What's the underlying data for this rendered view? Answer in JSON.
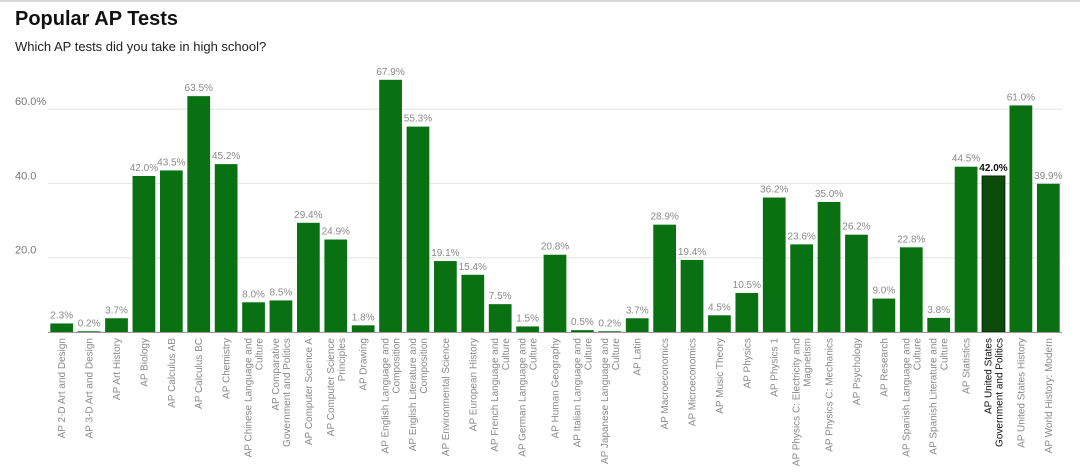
{
  "chart_data": {
    "type": "bar",
    "title": "Popular AP Tests",
    "subtitle": "Which AP tests did you take in high school?",
    "ylim": [
      0,
      70
    ],
    "yticks": [
      {
        "value": 20,
        "label": "20.0"
      },
      {
        "value": 40,
        "label": "40.0"
      },
      {
        "value": 60,
        "label": "60.0%"
      }
    ],
    "colors": {
      "bar": "#0a7113",
      "highlight": "#0b4a0b"
    },
    "highlight_index": 34,
    "bars": [
      {
        "label": [
          "AP 2-D Art and Design"
        ],
        "value": 2.3,
        "value_label": "2.3%"
      },
      {
        "label": [
          "AP 3-D Art and Design"
        ],
        "value": 0.2,
        "value_label": "0.2%"
      },
      {
        "label": [
          "AP Art History"
        ],
        "value": 3.7,
        "value_label": "3.7%"
      },
      {
        "label": [
          "AP Biology"
        ],
        "value": 42.0,
        "value_label": "42.0%"
      },
      {
        "label": [
          "AP Calculus AB"
        ],
        "value": 43.5,
        "value_label": "43.5%"
      },
      {
        "label": [
          "AP Calculus BC"
        ],
        "value": 63.5,
        "value_label": "63.5%"
      },
      {
        "label": [
          "AP Chemistry"
        ],
        "value": 45.2,
        "value_label": "45.2%"
      },
      {
        "label": [
          "AP Chinese Language and",
          "Culture"
        ],
        "value": 8.0,
        "value_label": "8.0%"
      },
      {
        "label": [
          "AP Comparative",
          "Government and Politics"
        ],
        "value": 8.5,
        "value_label": "8.5%"
      },
      {
        "label": [
          "AP Computer Science A"
        ],
        "value": 29.4,
        "value_label": "29.4%"
      },
      {
        "label": [
          "AP Computer Science",
          "Principles"
        ],
        "value": 24.9,
        "value_label": "24.9%"
      },
      {
        "label": [
          "AP Drawing"
        ],
        "value": 1.8,
        "value_label": "1.8%"
      },
      {
        "label": [
          "AP English Language and",
          "Composition"
        ],
        "value": 67.9,
        "value_label": "67.9%"
      },
      {
        "label": [
          "AP English Literature and",
          "Composition"
        ],
        "value": 55.3,
        "value_label": "55.3%"
      },
      {
        "label": [
          "AP Environmental Science"
        ],
        "value": 19.1,
        "value_label": "19.1%"
      },
      {
        "label": [
          "AP European History"
        ],
        "value": 15.4,
        "value_label": "15.4%"
      },
      {
        "label": [
          "AP French Language and",
          "Culture"
        ],
        "value": 7.5,
        "value_label": "7.5%"
      },
      {
        "label": [
          "AP German Language and",
          "Culture"
        ],
        "value": 1.5,
        "value_label": "1.5%"
      },
      {
        "label": [
          "AP Human Geography"
        ],
        "value": 20.8,
        "value_label": "20.8%"
      },
      {
        "label": [
          "AP Italian Language and",
          "Culture"
        ],
        "value": 0.5,
        "value_label": "0.5%"
      },
      {
        "label": [
          "AP Japanese Language and",
          "Culture"
        ],
        "value": 0.2,
        "value_label": "0.2%"
      },
      {
        "label": [
          "AP Latin"
        ],
        "value": 3.7,
        "value_label": "3.7%"
      },
      {
        "label": [
          "AP Macroeconomics"
        ],
        "value": 28.9,
        "value_label": "28.9%"
      },
      {
        "label": [
          "AP Microeconomics"
        ],
        "value": 19.4,
        "value_label": "19.4%"
      },
      {
        "label": [
          "AP Music Theory"
        ],
        "value": 4.5,
        "value_label": "4.5%"
      },
      {
        "label": [
          "AP Physics"
        ],
        "value": 10.5,
        "value_label": "10.5%"
      },
      {
        "label": [
          "AP Physics 1"
        ],
        "value": 36.2,
        "value_label": "36.2%"
      },
      {
        "label": [
          "AP Physics C: Electricity and",
          "Magnetism"
        ],
        "value": 23.6,
        "value_label": "23.6%"
      },
      {
        "label": [
          "AP Physics C: Mechanics"
        ],
        "value": 35.0,
        "value_label": "35.0%"
      },
      {
        "label": [
          "AP Psychology"
        ],
        "value": 26.2,
        "value_label": "26.2%"
      },
      {
        "label": [
          "AP Research"
        ],
        "value": 9.0,
        "value_label": "9.0%"
      },
      {
        "label": [
          "AP Spanish Language and",
          "Culture"
        ],
        "value": 22.8,
        "value_label": "22.8%"
      },
      {
        "label": [
          "AP Spanish Literature and",
          "Culture"
        ],
        "value": 3.8,
        "value_label": "3.8%"
      },
      {
        "label": [
          "AP Statistics"
        ],
        "value": 44.5,
        "value_label": "44.5%"
      },
      {
        "label": [
          "AP United States",
          "Government and Politics"
        ],
        "value": 42.0,
        "value_label": "42.0%"
      },
      {
        "label": [
          "AP United States History"
        ],
        "value": 61.0,
        "value_label": "61.0%"
      },
      {
        "label": [
          "AP World History: Modern"
        ],
        "value": 39.9,
        "value_label": "39.9%"
      }
    ]
  }
}
